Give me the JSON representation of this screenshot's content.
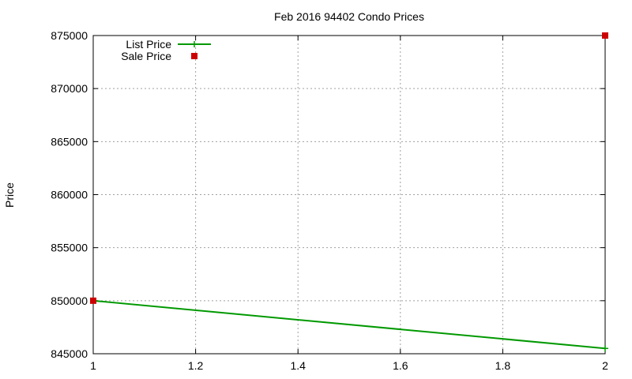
{
  "chart_data": {
    "type": "line",
    "title": "Feb 2016 94402 Condo Prices",
    "xlabel": "",
    "ylabel": "Price",
    "xlim": [
      1,
      2
    ],
    "ylim": [
      845000,
      875000
    ],
    "x_ticks": [
      1,
      1.2,
      1.4,
      1.6,
      1.8,
      2
    ],
    "x_tick_labels": [
      "1",
      "1.2",
      "1.4",
      "1.6",
      "1.8",
      "2"
    ],
    "y_ticks": [
      845000,
      850000,
      855000,
      860000,
      865000,
      870000,
      875000
    ],
    "y_tick_labels": [
      "845000",
      "850000",
      "855000",
      "860000",
      "865000",
      "870000",
      "875000"
    ],
    "grid": true,
    "legend_position": "top-left",
    "series": [
      {
        "name": "List Price",
        "style": "line",
        "color": "#009900",
        "points": [
          {
            "x": 1,
            "y": 850000
          },
          {
            "x": 2,
            "y": 845500
          }
        ]
      },
      {
        "name": "Sale Price",
        "style": "points",
        "color": "#cc0000",
        "points": [
          {
            "x": 1,
            "y": 850000
          },
          {
            "x": 2,
            "y": 875000
          }
        ]
      }
    ]
  }
}
